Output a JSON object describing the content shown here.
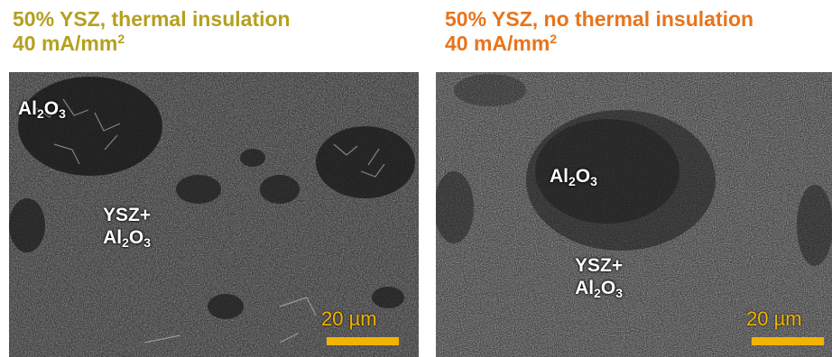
{
  "left": {
    "title_line1": "50% YSZ, thermal insulation",
    "title_line2_base": "40 mA/mm",
    "title_line2_sup": "2",
    "title_color": "#b5a020",
    "label_al2o3": {
      "a": "Al",
      "s1": "2",
      "b": "O",
      "s2": "3"
    },
    "label_mix": {
      "line1": "YSZ+",
      "a": "Al",
      "s1": "2",
      "b": "O",
      "s2": "3"
    },
    "scale_text": "20 µm"
  },
  "right": {
    "title_line1": "50% YSZ, no thermal insulation",
    "title_line2_base": "40 mA/mm",
    "title_line2_sup": "2",
    "title_color": "#e8741c",
    "label_al2o3": {
      "a": "Al",
      "s1": "2",
      "b": "O",
      "s2": "3"
    },
    "label_mix": {
      "line1": "YSZ+",
      "a": "Al",
      "s1": "2",
      "b": "O",
      "s2": "3"
    },
    "scale_text": "20 µm"
  },
  "colors": {
    "scale_bar": "#f2b400",
    "label_text": "#ffffff"
  }
}
